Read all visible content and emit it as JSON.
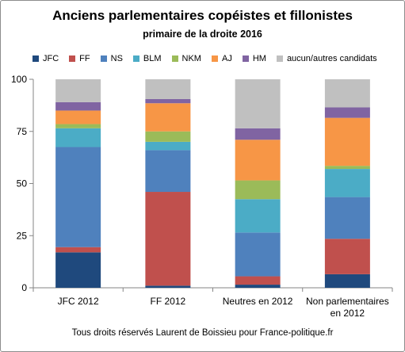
{
  "chart_data": {
    "type": "bar",
    "stacked": true,
    "title": "Anciens parlementaires copéistes et fillonistes",
    "subtitle": "primaire de la droite 2016",
    "footer": "Tous droits réservés Laurent de Boissieu pour France-politique.fr",
    "categories": [
      [
        "JFC 2012"
      ],
      [
        "FF 2012"
      ],
      [
        "Neutres en 2012"
      ],
      [
        "Non parlementaires",
        "en 2012"
      ]
    ],
    "series": [
      {
        "name": "JFC",
        "color": "#1f497d",
        "values": [
          17,
          1,
          1.5,
          6.5
        ]
      },
      {
        "name": "FF",
        "color": "#c0504d",
        "values": [
          2.5,
          45,
          4,
          17
        ]
      },
      {
        "name": "NS",
        "color": "#4f81bd",
        "values": [
          48,
          20,
          21,
          20
        ]
      },
      {
        "name": "BLM",
        "color": "#4bacc6",
        "values": [
          9,
          4,
          16,
          13.5
        ]
      },
      {
        "name": "NKM",
        "color": "#9bbb59",
        "values": [
          2,
          5,
          9,
          1.5
        ]
      },
      {
        "name": "AJ",
        "color": "#f79646",
        "values": [
          6.5,
          13.5,
          19.5,
          23
        ]
      },
      {
        "name": "HM",
        "color": "#8064a2",
        "values": [
          4,
          2,
          5.5,
          5
        ]
      },
      {
        "name": "aucun/autres candidats",
        "color": "#c0c0c0",
        "values": [
          11,
          9.5,
          23.5,
          13.5
        ]
      }
    ],
    "yticks": [
      "0",
      "25",
      "50",
      "75",
      "100"
    ],
    "ylim": [
      0,
      100
    ],
    "grid": false,
    "legend_position": "top"
  }
}
